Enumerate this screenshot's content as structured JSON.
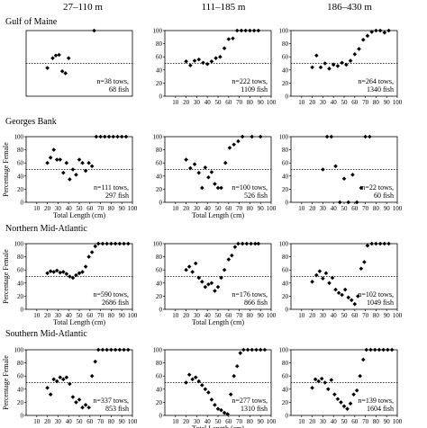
{
  "figure": {
    "column_headers": [
      "27–110 m",
      "111–185 m",
      "186–430 m"
    ],
    "row_labels": [
      "Gulf of Maine",
      "Georges Bank",
      "Northern Mid-Atlantic",
      "Southern Mid-Atlantic"
    ],
    "ylabel": "Percentage Female",
    "xlabel": "Total Length (cm)",
    "marker": "diamond",
    "reference_line_style": "dotted",
    "colors": {
      "marks": "#000000",
      "axes": "#000000",
      "background": "#ffffff"
    }
  },
  "chart_data": [
    {
      "type": "scatter",
      "row": "Gulf of Maine",
      "column": "27–110 m",
      "annotation": [
        "n=38 tows,",
        "68 fish"
      ],
      "points": [
        [
          20,
          43
        ],
        [
          25,
          58
        ],
        [
          28,
          62
        ],
        [
          31,
          63
        ],
        [
          34,
          38
        ],
        [
          37,
          35
        ],
        [
          40,
          58
        ],
        [
          64,
          100
        ]
      ],
      "reference_line": 50,
      "xlim": [
        0,
        100
      ],
      "ylim": [
        0,
        100
      ],
      "xticks": [],
      "yticks": []
    },
    {
      "type": "scatter",
      "row": "Gulf of Maine",
      "column": "111–185 m",
      "annotation": [
        "n=222 tows,",
        "1109 fish"
      ],
      "points": [
        [
          20,
          53
        ],
        [
          24,
          47
        ],
        [
          28,
          54
        ],
        [
          32,
          56
        ],
        [
          36,
          51
        ],
        [
          40,
          49
        ],
        [
          44,
          53
        ],
        [
          48,
          58
        ],
        [
          52,
          60
        ],
        [
          56,
          73
        ],
        [
          60,
          87
        ],
        [
          64,
          88
        ],
        [
          68,
          100
        ],
        [
          72,
          100
        ],
        [
          76,
          100
        ],
        [
          80,
          100
        ],
        [
          84,
          100
        ],
        [
          88,
          100
        ]
      ],
      "reference_line": 50,
      "xlim": [
        0,
        100
      ],
      "ylim": [
        0,
        100
      ],
      "xticks": [
        10,
        20,
        30,
        40,
        50,
        60,
        70,
        80,
        90,
        100
      ],
      "yticks": [
        0,
        20,
        40,
        60,
        80,
        100
      ]
    },
    {
      "type": "scatter",
      "row": "Gulf of Maine",
      "column": "186–430 m",
      "annotation": [
        "n=264 tows,",
        "1340 fish"
      ],
      "points": [
        [
          20,
          44
        ],
        [
          24,
          62
        ],
        [
          28,
          44
        ],
        [
          32,
          50
        ],
        [
          36,
          42
        ],
        [
          40,
          48
        ],
        [
          44,
          46
        ],
        [
          48,
          51
        ],
        [
          52,
          48
        ],
        [
          56,
          54
        ],
        [
          60,
          64
        ],
        [
          64,
          72
        ],
        [
          68,
          86
        ],
        [
          72,
          92
        ],
        [
          76,
          98
        ],
        [
          80,
          100
        ],
        [
          84,
          100
        ],
        [
          88,
          97
        ],
        [
          92,
          100
        ]
      ],
      "reference_line": 50,
      "xlim": [
        0,
        100
      ],
      "ylim": [
        0,
        100
      ],
      "xticks": [
        10,
        20,
        30,
        40,
        50,
        60,
        70,
        80,
        90,
        100
      ],
      "yticks": [
        0,
        20,
        40,
        60,
        80,
        100
      ]
    },
    {
      "type": "scatter",
      "row": "Georges Bank",
      "column": "27–110 m",
      "annotation": [
        "n=111 tows,",
        "297 fish"
      ],
      "points": [
        [
          20,
          60
        ],
        [
          23,
          68
        ],
        [
          26,
          80
        ],
        [
          29,
          65
        ],
        [
          32,
          65
        ],
        [
          35,
          45
        ],
        [
          38,
          60
        ],
        [
          41,
          35
        ],
        [
          44,
          50
        ],
        [
          47,
          42
        ],
        [
          50,
          65
        ],
        [
          53,
          60
        ],
        [
          56,
          48
        ],
        [
          59,
          60
        ],
        [
          62,
          55
        ],
        [
          66,
          100
        ],
        [
          70,
          100
        ],
        [
          74,
          100
        ],
        [
          78,
          100
        ],
        [
          82,
          100
        ],
        [
          86,
          100
        ],
        [
          90,
          100
        ],
        [
          94,
          100
        ]
      ],
      "reference_line": 50,
      "xlim": [
        0,
        100
      ],
      "ylim": [
        0,
        100
      ],
      "xticks": [
        10,
        20,
        30,
        40,
        50,
        60,
        70,
        80,
        90,
        100
      ],
      "yticks": [
        0,
        20,
        40,
        60,
        80,
        100
      ]
    },
    {
      "type": "scatter",
      "row": "Georges Bank",
      "column": "111–185 m",
      "annotation": [
        "n=100 tows,",
        "526 fish"
      ],
      "points": [
        [
          20,
          65
        ],
        [
          24,
          52
        ],
        [
          28,
          58
        ],
        [
          32,
          45
        ],
        [
          35,
          22
        ],
        [
          38,
          53
        ],
        [
          41,
          38
        ],
        [
          44,
          46
        ],
        [
          47,
          28
        ],
        [
          50,
          22
        ],
        [
          53,
          22
        ],
        [
          57,
          60
        ],
        [
          61,
          83
        ],
        [
          65,
          88
        ],
        [
          69,
          93
        ],
        [
          73,
          100
        ],
        [
          82,
          100
        ],
        [
          90,
          100
        ]
      ],
      "reference_line": 50,
      "xlim": [
        0,
        100
      ],
      "ylim": [
        0,
        100
      ],
      "xticks": [
        10,
        20,
        30,
        40,
        50,
        60,
        70,
        80,
        90,
        100
      ],
      "yticks": [
        0,
        20,
        40,
        60,
        80,
        100
      ]
    },
    {
      "type": "scatter",
      "row": "Georges Bank",
      "column": "186–430 m",
      "annotation": [
        "n=22 tows,",
        "60 fish"
      ],
      "points": [
        [
          30,
          50
        ],
        [
          34,
          100
        ],
        [
          38,
          100
        ],
        [
          42,
          55
        ],
        [
          46,
          0
        ],
        [
          50,
          36
        ],
        [
          54,
          0
        ],
        [
          58,
          42
        ],
        [
          62,
          0
        ],
        [
          66,
          22
        ],
        [
          70,
          100
        ],
        [
          74,
          100
        ]
      ],
      "reference_line": 50,
      "xlim": [
        0,
        100
      ],
      "ylim": [
        0,
        100
      ],
      "xticks": [
        10,
        20,
        30,
        40,
        50,
        60,
        70,
        80,
        90,
        100
      ],
      "yticks": [
        0,
        20,
        40,
        60,
        80,
        100
      ]
    },
    {
      "type": "scatter",
      "row": "Northern Mid-Atlantic",
      "column": "27–110 m",
      "annotation": [
        "n=590 tows,",
        "2686 fish"
      ],
      "points": [
        [
          20,
          55
        ],
        [
          23,
          58
        ],
        [
          26,
          57
        ],
        [
          29,
          59
        ],
        [
          32,
          56
        ],
        [
          35,
          57
        ],
        [
          38,
          54
        ],
        [
          41,
          50
        ],
        [
          44,
          48
        ],
        [
          47,
          52
        ],
        [
          50,
          55
        ],
        [
          53,
          57
        ],
        [
          56,
          65
        ],
        [
          59,
          80
        ],
        [
          62,
          87
        ],
        [
          65,
          96
        ],
        [
          68,
          100
        ],
        [
          72,
          100
        ],
        [
          76,
          100
        ],
        [
          80,
          100
        ],
        [
          84,
          100
        ],
        [
          88,
          100
        ],
        [
          92,
          100
        ],
        [
          96,
          100
        ]
      ],
      "reference_line": 50,
      "xlim": [
        0,
        100
      ],
      "ylim": [
        0,
        100
      ],
      "xticks": [
        10,
        20,
        30,
        40,
        50,
        60,
        70,
        80,
        90,
        100
      ],
      "yticks": [
        0,
        20,
        40,
        60,
        80,
        100
      ]
    },
    {
      "type": "scatter",
      "row": "Northern Mid-Atlantic",
      "column": "111–185 m",
      "annotation": [
        "n=176 tows,",
        "866 fish"
      ],
      "points": [
        [
          20,
          60
        ],
        [
          23,
          65
        ],
        [
          26,
          57
        ],
        [
          29,
          70
        ],
        [
          32,
          48
        ],
        [
          35,
          42
        ],
        [
          38,
          34
        ],
        [
          41,
          38
        ],
        [
          44,
          40
        ],
        [
          47,
          28
        ],
        [
          50,
          34
        ],
        [
          53,
          48
        ],
        [
          56,
          60
        ],
        [
          60,
          76
        ],
        [
          63,
          82
        ],
        [
          66,
          95
        ],
        [
          69,
          100
        ],
        [
          73,
          100
        ],
        [
          77,
          100
        ],
        [
          81,
          100
        ],
        [
          85,
          100
        ],
        [
          88,
          100
        ]
      ],
      "reference_line": 50,
      "xlim": [
        0,
        100
      ],
      "ylim": [
        0,
        100
      ],
      "xticks": [
        10,
        20,
        30,
        40,
        50,
        60,
        70,
        80,
        90,
        100
      ],
      "yticks": [
        0,
        20,
        40,
        60,
        80,
        100
      ]
    },
    {
      "type": "scatter",
      "row": "Northern Mid-Atlantic",
      "column": "186–430 m",
      "annotation": [
        "n=102 tows,",
        "1049 fish"
      ],
      "points": [
        [
          20,
          42
        ],
        [
          24,
          52
        ],
        [
          27,
          58
        ],
        [
          30,
          47
        ],
        [
          33,
          55
        ],
        [
          36,
          40
        ],
        [
          39,
          48
        ],
        [
          42,
          30
        ],
        [
          45,
          25
        ],
        [
          48,
          22
        ],
        [
          51,
          30
        ],
        [
          54,
          18
        ],
        [
          57,
          14
        ],
        [
          60,
          8
        ],
        [
          63,
          20
        ],
        [
          66,
          62
        ],
        [
          69,
          72
        ],
        [
          72,
          97
        ],
        [
          76,
          100
        ],
        [
          80,
          100
        ],
        [
          84,
          100
        ],
        [
          88,
          100
        ],
        [
          92,
          100
        ]
      ],
      "reference_line": 50,
      "xlim": [
        0,
        100
      ],
      "ylim": [
        0,
        100
      ],
      "xticks": [
        10,
        20,
        30,
        40,
        50,
        60,
        70,
        80,
        90,
        100
      ],
      "yticks": [
        0,
        20,
        40,
        60,
        80,
        100
      ]
    },
    {
      "type": "scatter",
      "row": "Southern Mid-Atlantic",
      "column": "27–110 m",
      "annotation": [
        "n=337 tows,",
        "853 fish"
      ],
      "points": [
        [
          20,
          42
        ],
        [
          23,
          32
        ],
        [
          26,
          55
        ],
        [
          29,
          52
        ],
        [
          32,
          58
        ],
        [
          35,
          55
        ],
        [
          38,
          58
        ],
        [
          41,
          48
        ],
        [
          44,
          28
        ],
        [
          47,
          20
        ],
        [
          50,
          24
        ],
        [
          53,
          12
        ],
        [
          56,
          16
        ],
        [
          59,
          12
        ],
        [
          62,
          60
        ],
        [
          65,
          82
        ],
        [
          68,
          100
        ],
        [
          72,
          100
        ],
        [
          76,
          100
        ],
        [
          80,
          100
        ],
        [
          84,
          100
        ],
        [
          88,
          100
        ],
        [
          92,
          100
        ],
        [
          96,
          100
        ]
      ],
      "reference_line": 50,
      "xlim": [
        0,
        100
      ],
      "ylim": [
        0,
        100
      ],
      "xticks": [
        10,
        20,
        30,
        40,
        50,
        60,
        70,
        80,
        90,
        100
      ],
      "yticks": [
        0,
        20,
        40,
        60,
        80,
        100
      ]
    },
    {
      "type": "scatter",
      "row": "Southern Mid-Atlantic",
      "column": "111–185 m",
      "annotation": [
        "n=277 tows,",
        "1310 fish"
      ],
      "points": [
        [
          20,
          50
        ],
        [
          23,
          62
        ],
        [
          26,
          55
        ],
        [
          29,
          58
        ],
        [
          32,
          52
        ],
        [
          35,
          46
        ],
        [
          38,
          40
        ],
        [
          41,
          35
        ],
        [
          44,
          24
        ],
        [
          47,
          16
        ],
        [
          50,
          10
        ],
        [
          53,
          8
        ],
        [
          56,
          4
        ],
        [
          59,
          2
        ],
        [
          62,
          32
        ],
        [
          65,
          60
        ],
        [
          68,
          75
        ],
        [
          71,
          95
        ],
        [
          74,
          100
        ],
        [
          78,
          100
        ],
        [
          82,
          100
        ],
        [
          86,
          100
        ],
        [
          90,
          100
        ],
        [
          94,
          100
        ]
      ],
      "reference_line": 50,
      "xlim": [
        0,
        100
      ],
      "ylim": [
        0,
        100
      ],
      "xticks": [
        10,
        20,
        30,
        40,
        50,
        60,
        70,
        80,
        90,
        100
      ],
      "yticks": [
        0,
        20,
        40,
        60,
        80,
        100
      ]
    },
    {
      "type": "scatter",
      "row": "Southern Mid-Atlantic",
      "column": "186–430 m",
      "annotation": [
        "n=139 tows,",
        "1604 fish"
      ],
      "points": [
        [
          20,
          42
        ],
        [
          23,
          55
        ],
        [
          26,
          52
        ],
        [
          29,
          56
        ],
        [
          32,
          50
        ],
        [
          35,
          40
        ],
        [
          38,
          54
        ],
        [
          41,
          32
        ],
        [
          44,
          25
        ],
        [
          47,
          20
        ],
        [
          50,
          14
        ],
        [
          53,
          10
        ],
        [
          56,
          18
        ],
        [
          59,
          32
        ],
        [
          62,
          38
        ],
        [
          65,
          60
        ],
        [
          68,
          85
        ],
        [
          71,
          100
        ],
        [
          75,
          100
        ],
        [
          79,
          100
        ],
        [
          83,
          100
        ],
        [
          87,
          100
        ],
        [
          91,
          100
        ],
        [
          95,
          100
        ]
      ],
      "reference_line": 50,
      "xlim": [
        0,
        100
      ],
      "ylim": [
        0,
        100
      ],
      "xticks": [
        10,
        20,
        30,
        40,
        50,
        60,
        70,
        80,
        90,
        100
      ],
      "yticks": [
        0,
        20,
        40,
        60,
        80,
        100
      ]
    }
  ]
}
